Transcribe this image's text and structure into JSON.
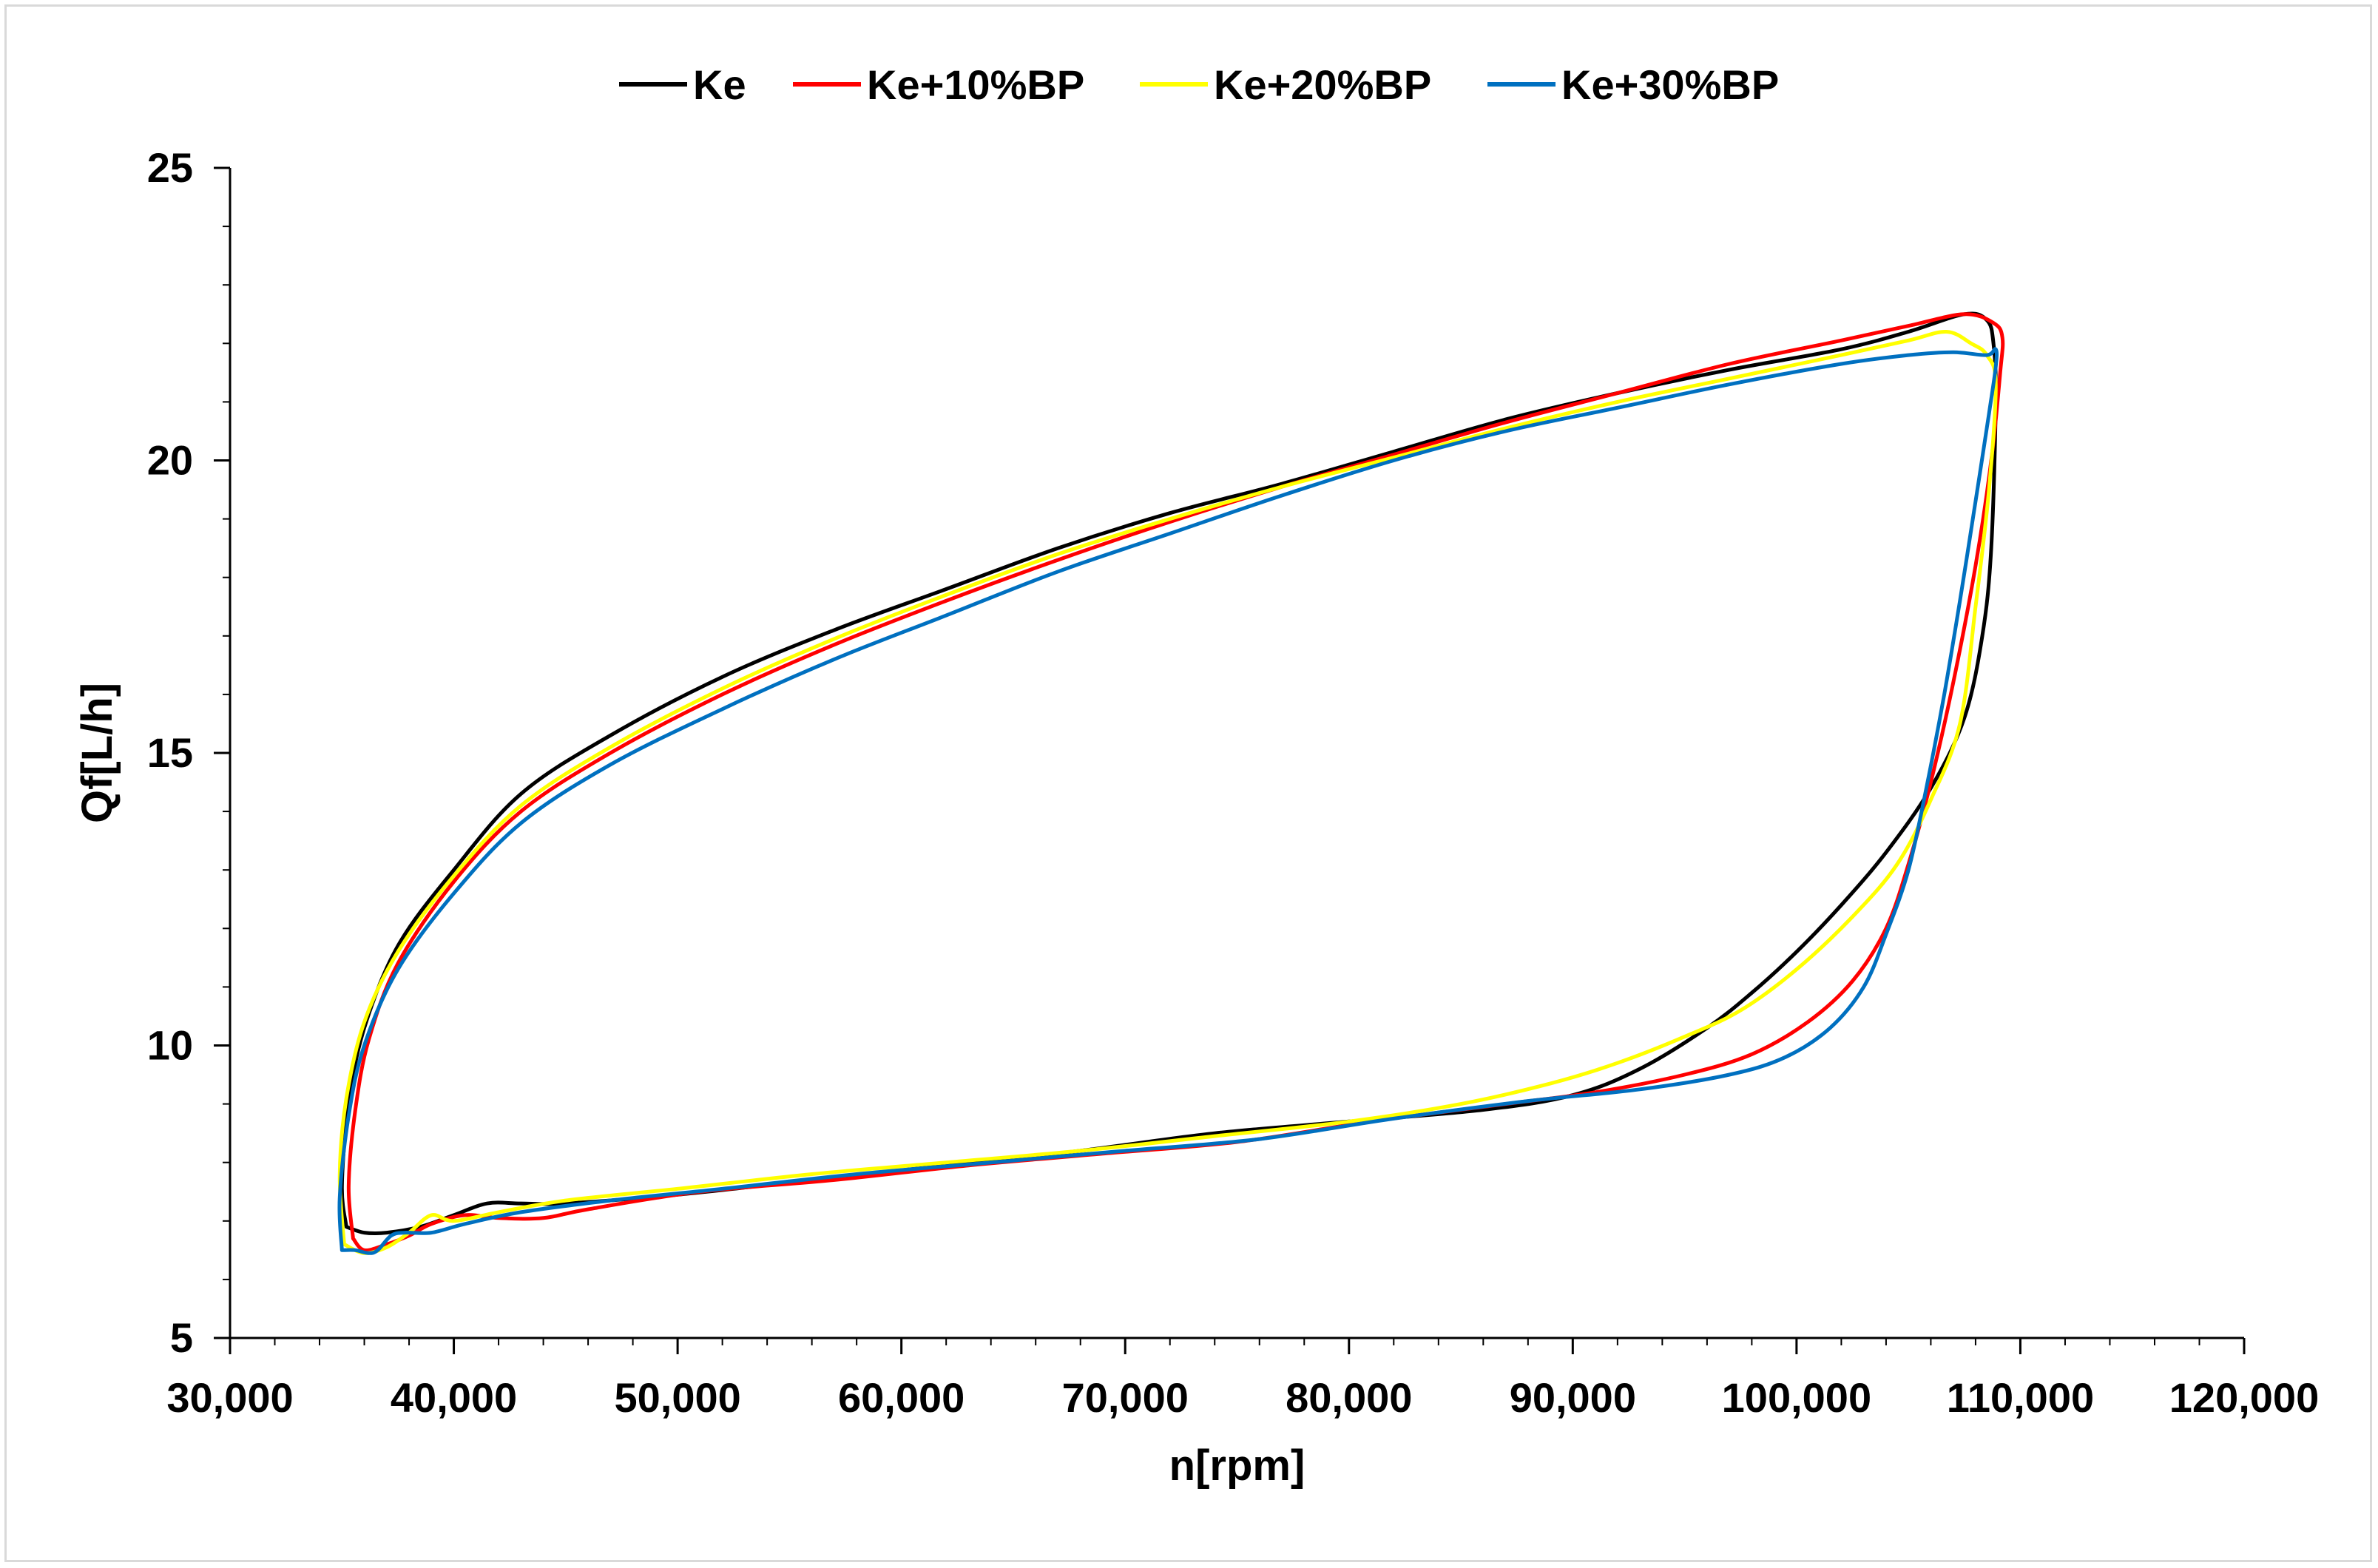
{
  "chart_data": {
    "type": "line",
    "title": "",
    "xlabel": "n[rpm]",
    "ylabel": "Qf[L/h]",
    "xlim": [
      30000,
      120000
    ],
    "ylim": [
      5,
      25
    ],
    "x_ticks": [
      30000,
      40000,
      50000,
      60000,
      70000,
      80000,
      90000,
      100000,
      110000,
      120000
    ],
    "x_tick_labels": [
      "30,000",
      "40,000",
      "50,000",
      "60,000",
      "70,000",
      "80,000",
      "90,000",
      "100,000",
      "110,000",
      "120,000"
    ],
    "y_ticks": [
      5,
      10,
      15,
      20,
      25
    ],
    "y_tick_labels": [
      "5",
      "10",
      "15",
      "20",
      "25"
    ],
    "y_minor_step": 1,
    "x_minor_step": 2000,
    "grid": false,
    "legend_position": "top",
    "series": [
      {
        "name": "Ke",
        "color": "#000000",
        "points": [
          [
            35200,
            6.9
          ],
          [
            35000,
            7.6
          ],
          [
            35300,
            9.0
          ],
          [
            36000,
            10.3
          ],
          [
            37500,
            11.7
          ],
          [
            40000,
            13.0
          ],
          [
            43000,
            14.3
          ],
          [
            47000,
            15.3
          ],
          [
            52000,
            16.3
          ],
          [
            57000,
            17.1
          ],
          [
            62000,
            17.8
          ],
          [
            67000,
            18.5
          ],
          [
            72000,
            19.1
          ],
          [
            77000,
            19.6
          ],
          [
            82000,
            20.15
          ],
          [
            87000,
            20.7
          ],
          [
            92000,
            21.15
          ],
          [
            97000,
            21.55
          ],
          [
            102000,
            21.9
          ],
          [
            105000,
            22.2
          ],
          [
            107500,
            22.5
          ],
          [
            108500,
            22.4
          ],
          [
            108800,
            22.0
          ],
          [
            108900,
            21.0
          ],
          [
            108700,
            18.5
          ],
          [
            108300,
            17.0
          ],
          [
            107500,
            15.6
          ],
          [
            106000,
            14.4
          ],
          [
            104000,
            13.3
          ],
          [
            102000,
            12.4
          ],
          [
            100000,
            11.6
          ],
          [
            98000,
            10.9
          ],
          [
            96000,
            10.3
          ],
          [
            93000,
            9.6
          ],
          [
            90000,
            9.15
          ],
          [
            86000,
            8.9
          ],
          [
            80000,
            8.7
          ],
          [
            74000,
            8.5
          ],
          [
            68000,
            8.2
          ],
          [
            62000,
            7.95
          ],
          [
            56000,
            7.7
          ],
          [
            50000,
            7.45
          ],
          [
            45000,
            7.3
          ],
          [
            43000,
            7.3
          ],
          [
            41500,
            7.3
          ],
          [
            40000,
            7.1
          ],
          [
            38500,
            6.9
          ],
          [
            37000,
            6.8
          ],
          [
            36000,
            6.8
          ],
          [
            35200,
            6.9
          ]
        ]
      },
      {
        "name": "Ke+10%BP",
        "color": "#ff0000",
        "points": [
          [
            35500,
            6.7
          ],
          [
            35300,
            7.6
          ],
          [
            35600,
            8.9
          ],
          [
            36200,
            10.1
          ],
          [
            37500,
            11.4
          ],
          [
            40000,
            12.8
          ],
          [
            43000,
            14.0
          ],
          [
            47000,
            15.0
          ],
          [
            52000,
            16.0
          ],
          [
            57000,
            16.85
          ],
          [
            62000,
            17.6
          ],
          [
            67000,
            18.3
          ],
          [
            72000,
            18.95
          ],
          [
            77000,
            19.55
          ],
          [
            82000,
            20.1
          ],
          [
            87000,
            20.65
          ],
          [
            92000,
            21.15
          ],
          [
            97000,
            21.65
          ],
          [
            102000,
            22.05
          ],
          [
            105000,
            22.3
          ],
          [
            107500,
            22.5
          ],
          [
            108800,
            22.35
          ],
          [
            109200,
            22.1
          ],
          [
            109100,
            21.5
          ],
          [
            108700,
            20.0
          ],
          [
            108000,
            18.2
          ],
          [
            107000,
            16.2
          ],
          [
            106000,
            14.5
          ],
          [
            105000,
            13.1
          ],
          [
            104000,
            12.0
          ],
          [
            102500,
            11.1
          ],
          [
            100500,
            10.4
          ],
          [
            98000,
            9.85
          ],
          [
            95000,
            9.5
          ],
          [
            91000,
            9.2
          ],
          [
            87000,
            9.0
          ],
          [
            81000,
            8.7
          ],
          [
            75000,
            8.35
          ],
          [
            69000,
            8.15
          ],
          [
            63000,
            7.95
          ],
          [
            57000,
            7.7
          ],
          [
            51000,
            7.5
          ],
          [
            46000,
            7.2
          ],
          [
            44000,
            7.05
          ],
          [
            42000,
            7.05
          ],
          [
            40500,
            7.1
          ],
          [
            39000,
            6.95
          ],
          [
            38000,
            6.75
          ],
          [
            37000,
            6.6
          ],
          [
            36000,
            6.5
          ],
          [
            35500,
            6.7
          ]
        ]
      },
      {
        "name": "Ke+20%BP",
        "color": "#ffff00",
        "points": [
          [
            35100,
            6.6
          ],
          [
            34900,
            7.8
          ],
          [
            35200,
            9.1
          ],
          [
            36000,
            10.4
          ],
          [
            37500,
            11.6
          ],
          [
            40000,
            12.9
          ],
          [
            43000,
            14.1
          ],
          [
            47000,
            15.1
          ],
          [
            52000,
            16.1
          ],
          [
            57000,
            16.95
          ],
          [
            62000,
            17.7
          ],
          [
            67000,
            18.4
          ],
          [
            72000,
            19.0
          ],
          [
            77000,
            19.55
          ],
          [
            82000,
            20.05
          ],
          [
            87000,
            20.55
          ],
          [
            92000,
            21.0
          ],
          [
            97000,
            21.4
          ],
          [
            102000,
            21.8
          ],
          [
            105000,
            22.05
          ],
          [
            106700,
            22.2
          ],
          [
            107800,
            22.0
          ],
          [
            108500,
            21.8
          ],
          [
            108900,
            21.3
          ],
          [
            108600,
            19.5
          ],
          [
            108000,
            17.5
          ],
          [
            107300,
            15.5
          ],
          [
            106000,
            14.2
          ],
          [
            104500,
            13.1
          ],
          [
            102500,
            12.2
          ],
          [
            100000,
            11.3
          ],
          [
            97500,
            10.6
          ],
          [
            95000,
            10.15
          ],
          [
            92000,
            9.7
          ],
          [
            89000,
            9.35
          ],
          [
            85000,
            9.0
          ],
          [
            80000,
            8.7
          ],
          [
            74000,
            8.45
          ],
          [
            68000,
            8.2
          ],
          [
            62000,
            8.0
          ],
          [
            56000,
            7.8
          ],
          [
            50000,
            7.55
          ],
          [
            45000,
            7.35
          ],
          [
            42000,
            7.15
          ],
          [
            40000,
            7.0
          ],
          [
            39000,
            7.1
          ],
          [
            38000,
            6.8
          ],
          [
            37000,
            6.55
          ],
          [
            36000,
            6.45
          ],
          [
            35100,
            6.6
          ]
        ]
      },
      {
        "name": "Ke+30%BP",
        "color": "#0070c0",
        "points": [
          [
            35000,
            6.5
          ],
          [
            34900,
            7.4
          ],
          [
            35300,
            8.8
          ],
          [
            36000,
            10.0
          ],
          [
            37500,
            11.3
          ],
          [
            40000,
            12.6
          ],
          [
            43000,
            13.8
          ],
          [
            47000,
            14.8
          ],
          [
            52000,
            15.75
          ],
          [
            57000,
            16.6
          ],
          [
            62000,
            17.35
          ],
          [
            67000,
            18.1
          ],
          [
            72000,
            18.75
          ],
          [
            77000,
            19.4
          ],
          [
            82000,
            20.0
          ],
          [
            87000,
            20.5
          ],
          [
            92000,
            20.9
          ],
          [
            97000,
            21.3
          ],
          [
            102000,
            21.65
          ],
          [
            105000,
            21.8
          ],
          [
            107000,
            21.85
          ],
          [
            108500,
            21.8
          ],
          [
            108900,
            21.9
          ],
          [
            108900,
            21.6
          ],
          [
            108600,
            20.8
          ],
          [
            108000,
            19.3
          ],
          [
            107300,
            17.6
          ],
          [
            106600,
            16.0
          ],
          [
            105800,
            14.4
          ],
          [
            105000,
            13.0
          ],
          [
            104000,
            11.9
          ],
          [
            103000,
            11.0
          ],
          [
            101500,
            10.3
          ],
          [
            99500,
            9.8
          ],
          [
            97000,
            9.5
          ],
          [
            93000,
            9.25
          ],
          [
            88000,
            9.05
          ],
          [
            82000,
            8.75
          ],
          [
            76000,
            8.4
          ],
          [
            70000,
            8.2
          ],
          [
            64000,
            8.0
          ],
          [
            58000,
            7.8
          ],
          [
            52000,
            7.55
          ],
          [
            47000,
            7.35
          ],
          [
            43000,
            7.15
          ],
          [
            40500,
            6.95
          ],
          [
            39000,
            6.8
          ],
          [
            37800,
            6.8
          ],
          [
            37200,
            6.75
          ],
          [
            36600,
            6.5
          ],
          [
            36200,
            6.45
          ],
          [
            35600,
            6.5
          ],
          [
            35000,
            6.5
          ]
        ]
      }
    ]
  }
}
